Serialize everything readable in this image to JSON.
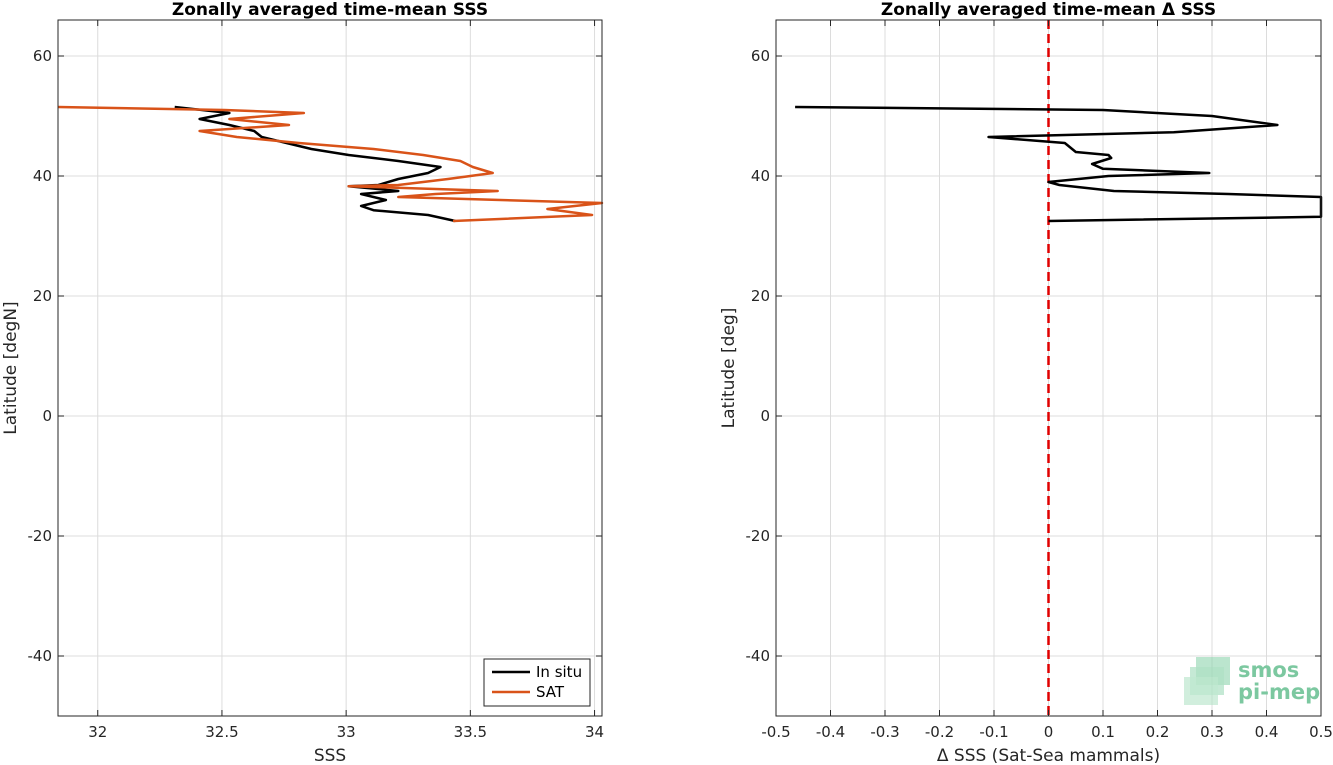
{
  "chart_data": [
    {
      "type": "line",
      "title": "Zonally averaged time-mean SSS",
      "xlabel": "SSS",
      "ylabel": "Latitude [degN]",
      "xlim": [
        31.84,
        34.03
      ],
      "ylim": [
        -50,
        66
      ],
      "xticks": [
        "32",
        "32.5",
        "33",
        "33.5",
        "34"
      ],
      "yticks": [
        "60",
        "40",
        "20",
        "0",
        "-20",
        "-40"
      ],
      "grid": true,
      "legend_position": "bottom-right",
      "series": [
        {
          "name": "In situ",
          "color": "#000000",
          "points": [
            [
              32.31,
              51.5
            ],
            [
              32.53,
              50.5
            ],
            [
              32.41,
              49.5
            ],
            [
              32.53,
              48.5
            ],
            [
              32.63,
              47.5
            ],
            [
              32.66,
              46.5
            ],
            [
              32.76,
              45.5
            ],
            [
              32.86,
              44.5
            ],
            [
              33.01,
              43.5
            ],
            [
              33.21,
              42.5
            ],
            [
              33.38,
              41.5
            ],
            [
              33.33,
              40.5
            ],
            [
              33.21,
              39.5
            ],
            [
              33.13,
              38.5
            ],
            [
              33.01,
              38.3
            ],
            [
              33.21,
              37.5
            ],
            [
              33.06,
              37.0
            ],
            [
              33.16,
              36.0
            ],
            [
              33.06,
              35.0
            ],
            [
              33.11,
              34.3
            ],
            [
              33.33,
              33.5
            ],
            [
              33.44,
              32.5
            ]
          ]
        },
        {
          "name": "SAT",
          "color": "#d95319",
          "points": [
            [
              31.84,
              51.5
            ],
            [
              32.51,
              51.0
            ],
            [
              32.83,
              50.5
            ],
            [
              32.53,
              49.5
            ],
            [
              32.77,
              48.5
            ],
            [
              32.41,
              47.5
            ],
            [
              32.56,
              46.5
            ],
            [
              32.81,
              45.5
            ],
            [
              33.11,
              44.5
            ],
            [
              33.31,
              43.5
            ],
            [
              33.46,
              42.5
            ],
            [
              33.51,
              41.5
            ],
            [
              33.59,
              40.5
            ],
            [
              33.41,
              39.5
            ],
            [
              33.21,
              38.5
            ],
            [
              33.01,
              38.3
            ],
            [
              33.61,
              37.5
            ],
            [
              33.36,
              37.0
            ],
            [
              33.21,
              36.5
            ],
            [
              34.03,
              35.5
            ],
            [
              33.81,
              34.5
            ],
            [
              33.99,
              33.5
            ],
            [
              33.43,
              32.5
            ]
          ]
        }
      ]
    },
    {
      "type": "line",
      "title": "Zonally averaged time-mean Δ SSS",
      "xlabel": "Δ SSS (Sat-Sea mammals)",
      "ylabel": "Latitude [deg]",
      "xlim": [
        -0.5,
        0.5
      ],
      "ylim": [
        -50,
        66
      ],
      "xticks": [
        "-0.5",
        "-0.4",
        "-0.3",
        "-0.2",
        "-0.1",
        "0",
        "0.1",
        "0.2",
        "0.3",
        "0.4",
        "0.5"
      ],
      "yticks": [
        "60",
        "40",
        "20",
        "0",
        "-20",
        "-40"
      ],
      "grid": true,
      "reference_line": {
        "x": 0,
        "color": "#e00000",
        "style": "dashed"
      },
      "series": [
        {
          "color": "#000000",
          "points": [
            [
              -0.465,
              51.5
            ],
            [
              0.1,
              51.0
            ],
            [
              0.3,
              50.0
            ],
            [
              0.42,
              48.5
            ],
            [
              0.23,
              47.3
            ],
            [
              -0.11,
              46.5
            ],
            [
              0.03,
              45.5
            ],
            [
              0.05,
              44.0
            ],
            [
              0.11,
              43.5
            ],
            [
              0.115,
              43.0
            ],
            [
              0.08,
              42.0
            ],
            [
              0.1,
              41.2
            ],
            [
              0.295,
              40.5
            ],
            [
              0.11,
              40.0
            ],
            [
              0.0,
              39.0
            ],
            [
              0.02,
              38.5
            ],
            [
              0.12,
              37.5
            ],
            [
              0.33,
              37.0
            ],
            [
              0.5,
              36.5
            ],
            [
              0.5,
              33.2
            ],
            [
              0.0,
              32.5
            ]
          ]
        }
      ]
    }
  ],
  "logo": {
    "line1": "smos",
    "line2": "pi-mep",
    "color": "#7cc8a0"
  }
}
